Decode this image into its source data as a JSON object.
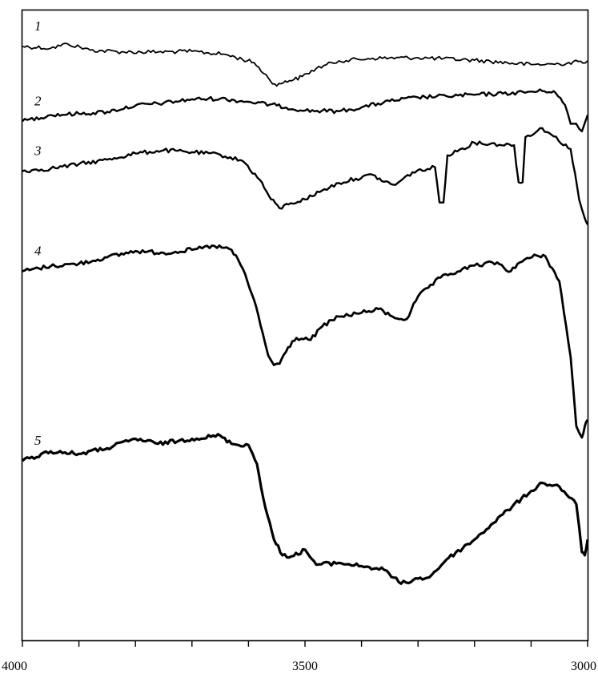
{
  "chart_data": {
    "type": "line",
    "title": "",
    "xlabel": "",
    "ylabel": "",
    "x_reversed": true,
    "xlim": [
      4000,
      3000
    ],
    "xticks": [
      4000,
      3500,
      3000
    ],
    "xticks_minor_step": 100,
    "grid": false,
    "legend": "none",
    "y_units": "relative transmittance (arbitrary, top = 1, bottom = 0)",
    "series": [
      {
        "name": "1",
        "color": "#000000",
        "points": [
          [
            4000,
            0.943
          ],
          [
            3950,
            0.94
          ],
          [
            3920,
            0.947
          ],
          [
            3880,
            0.937
          ],
          [
            3820,
            0.934
          ],
          [
            3760,
            0.934
          ],
          [
            3700,
            0.935
          ],
          [
            3640,
            0.93
          ],
          [
            3590,
            0.917
          ],
          [
            3565,
            0.893
          ],
          [
            3550,
            0.88
          ],
          [
            3535,
            0.888
          ],
          [
            3520,
            0.89
          ],
          [
            3505,
            0.895
          ],
          [
            3480,
            0.908
          ],
          [
            3440,
            0.92
          ],
          [
            3380,
            0.924
          ],
          [
            3300,
            0.925
          ],
          [
            3200,
            0.921
          ],
          [
            3100,
            0.914
          ],
          [
            3050,
            0.915
          ],
          [
            3000,
            0.92
          ]
        ]
      },
      {
        "name": "2",
        "color": "#000000",
        "points": [
          [
            4000,
            0.824
          ],
          [
            3950,
            0.834
          ],
          [
            3900,
            0.836
          ],
          [
            3850,
            0.839
          ],
          [
            3800,
            0.849
          ],
          [
            3750,
            0.853
          ],
          [
            3700,
            0.859
          ],
          [
            3650,
            0.86
          ],
          [
            3600,
            0.855
          ],
          [
            3550,
            0.849
          ],
          [
            3500,
            0.841
          ],
          [
            3440,
            0.84
          ],
          [
            3400,
            0.846
          ],
          [
            3350,
            0.856
          ],
          [
            3300,
            0.862
          ],
          [
            3250,
            0.864
          ],
          [
            3200,
            0.866
          ],
          [
            3150,
            0.868
          ],
          [
            3080,
            0.872
          ],
          [
            3060,
            0.872
          ],
          [
            3040,
            0.85
          ],
          [
            3030,
            0.82
          ],
          [
            3020,
            0.82
          ],
          [
            3010,
            0.808
          ],
          [
            3000,
            0.834
          ]
        ]
      },
      {
        "name": "3",
        "color": "#000000",
        "points": [
          [
            4000,
            0.745
          ],
          [
            3950,
            0.749
          ],
          [
            3900,
            0.756
          ],
          [
            3850,
            0.763
          ],
          [
            3800,
            0.773
          ],
          [
            3750,
            0.778
          ],
          [
            3700,
            0.775
          ],
          [
            3650,
            0.771
          ],
          [
            3610,
            0.761
          ],
          [
            3580,
            0.731
          ],
          [
            3560,
            0.7
          ],
          [
            3545,
            0.686
          ],
          [
            3525,
            0.694
          ],
          [
            3500,
            0.7
          ],
          [
            3470,
            0.714
          ],
          [
            3440,
            0.726
          ],
          [
            3410,
            0.733
          ],
          [
            3380,
            0.739
          ],
          [
            3360,
            0.728
          ],
          [
            3340,
            0.723
          ],
          [
            3310,
            0.743
          ],
          [
            3270,
            0.751
          ],
          [
            3262,
            0.695
          ],
          [
            3255,
            0.695
          ],
          [
            3248,
            0.77
          ],
          [
            3200,
            0.79
          ],
          [
            3130,
            0.786
          ],
          [
            3122,
            0.727
          ],
          [
            3115,
            0.727
          ],
          [
            3110,
            0.799
          ],
          [
            3080,
            0.813
          ],
          [
            3060,
            0.8
          ],
          [
            3030,
            0.78
          ],
          [
            3015,
            0.7
          ],
          [
            3005,
            0.67
          ],
          [
            3000,
            0.66
          ]
        ]
      },
      {
        "name": "4",
        "color": "#000000",
        "points": [
          [
            4000,
            0.586
          ],
          [
            3950,
            0.594
          ],
          [
            3900,
            0.598
          ],
          [
            3850,
            0.608
          ],
          [
            3800,
            0.618
          ],
          [
            3750,
            0.615
          ],
          [
            3700,
            0.62
          ],
          [
            3660,
            0.626
          ],
          [
            3630,
            0.62
          ],
          [
            3610,
            0.59
          ],
          [
            3590,
            0.54
          ],
          [
            3575,
            0.488
          ],
          [
            3565,
            0.452
          ],
          [
            3555,
            0.437
          ],
          [
            3545,
            0.439
          ],
          [
            3530,
            0.465
          ],
          [
            3515,
            0.48
          ],
          [
            3490,
            0.477
          ],
          [
            3470,
            0.498
          ],
          [
            3440,
            0.514
          ],
          [
            3400,
            0.52
          ],
          [
            3370,
            0.526
          ],
          [
            3345,
            0.514
          ],
          [
            3330,
            0.51
          ],
          [
            3320,
            0.51
          ],
          [
            3300,
            0.546
          ],
          [
            3260,
            0.576
          ],
          [
            3200,
            0.595
          ],
          [
            3160,
            0.6
          ],
          [
            3140,
            0.585
          ],
          [
            3120,
            0.6
          ],
          [
            3090,
            0.611
          ],
          [
            3075,
            0.61
          ],
          [
            3050,
            0.57
          ],
          [
            3030,
            0.45
          ],
          [
            3020,
            0.34
          ],
          [
            3010,
            0.322
          ],
          [
            3005,
            0.34
          ],
          [
            3000,
            0.35
          ]
        ]
      },
      {
        "name": "5",
        "color": "#000000",
        "points": [
          [
            4000,
            0.285
          ],
          [
            3950,
            0.3
          ],
          [
            3900,
            0.296
          ],
          [
            3850,
            0.305
          ],
          [
            3800,
            0.32
          ],
          [
            3760,
            0.312
          ],
          [
            3700,
            0.32
          ],
          [
            3650,
            0.325
          ],
          [
            3630,
            0.312
          ],
          [
            3600,
            0.31
          ],
          [
            3585,
            0.28
          ],
          [
            3570,
            0.21
          ],
          [
            3555,
            0.16
          ],
          [
            3540,
            0.135
          ],
          [
            3520,
            0.134
          ],
          [
            3500,
            0.144
          ],
          [
            3480,
            0.12
          ],
          [
            3440,
            0.123
          ],
          [
            3400,
            0.118
          ],
          [
            3360,
            0.112
          ],
          [
            3330,
            0.09
          ],
          [
            3300,
            0.098
          ],
          [
            3280,
            0.1
          ],
          [
            3250,
            0.128
          ],
          [
            3200,
            0.16
          ],
          [
            3150,
            0.2
          ],
          [
            3100,
            0.237
          ],
          [
            3080,
            0.25
          ],
          [
            3050,
            0.244
          ],
          [
            3020,
            0.216
          ],
          [
            3010,
            0.14
          ],
          [
            3005,
            0.135
          ],
          [
            3000,
            0.16
          ]
        ]
      }
    ]
  }
}
